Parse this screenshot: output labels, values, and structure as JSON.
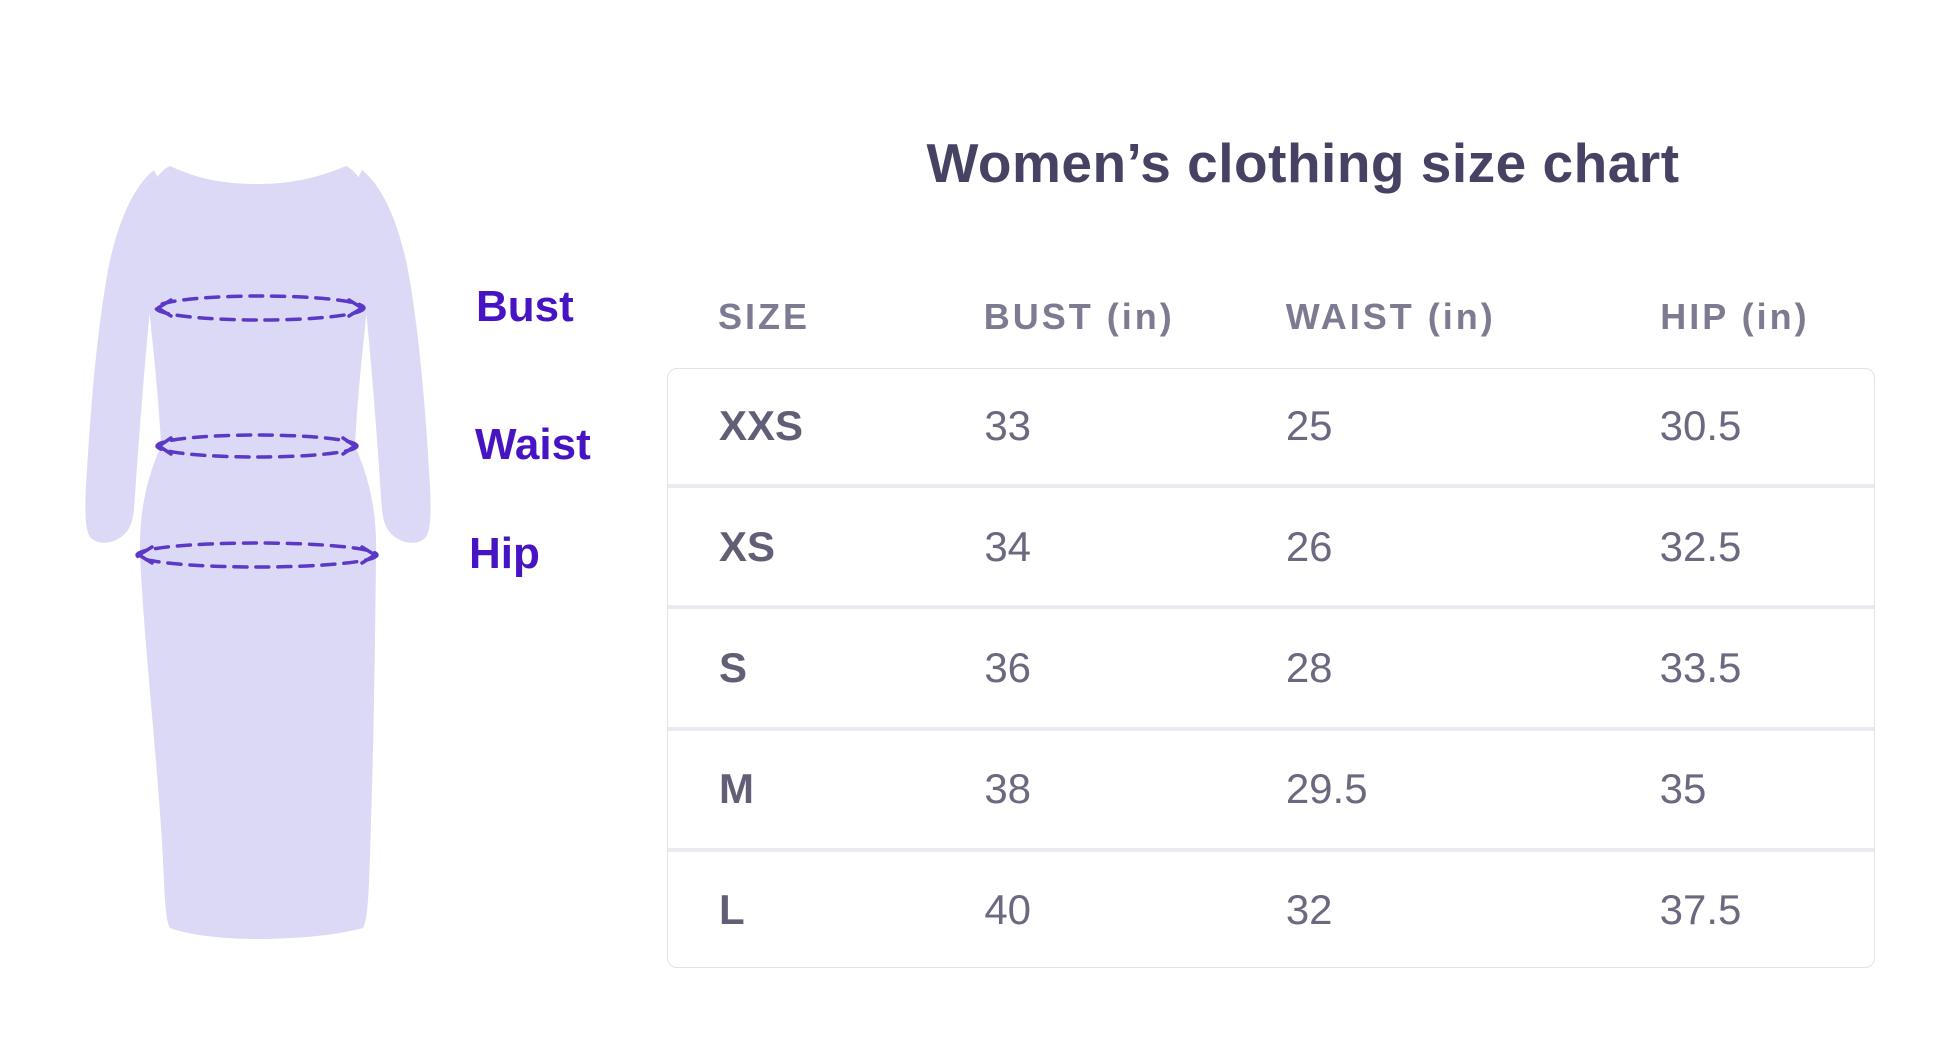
{
  "title": "Women’s clothing size chart",
  "chart_data": {
    "type": "table",
    "title": "Women’s clothing size chart",
    "columns": [
      "SIZE",
      "BUST (in)",
      "WAIST (in)",
      "HIP (in)"
    ],
    "rows": [
      [
        "XXS",
        "33",
        "25",
        "30.5"
      ],
      [
        "XS",
        "34",
        "26",
        "32.5"
      ],
      [
        "S",
        "36",
        "28",
        "33.5"
      ],
      [
        "M",
        "38",
        "29.5",
        "35"
      ],
      [
        "L",
        "40",
        "32",
        "37.5"
      ]
    ],
    "measurement_labels": [
      "Bust",
      "Waist",
      "Hip"
    ],
    "units": "inches",
    "grid": "row-dividers",
    "legend_position": "none"
  },
  "figure": {
    "description": "lavender dress silhouette with dashed measuring ellipses at bust, waist and hip"
  },
  "colors": {
    "accent_purple": "#4714c4",
    "dress_fill": "#dcd9f6",
    "dash_stroke": "#5b38c6",
    "title_text": "#464263",
    "header_text": "#7d7b91",
    "cell_text": "#6b6980",
    "size_text": "#615f75",
    "card_border": "#e3e2e9",
    "row_divider": "#eceaf0",
    "background": "#ffffff"
  }
}
